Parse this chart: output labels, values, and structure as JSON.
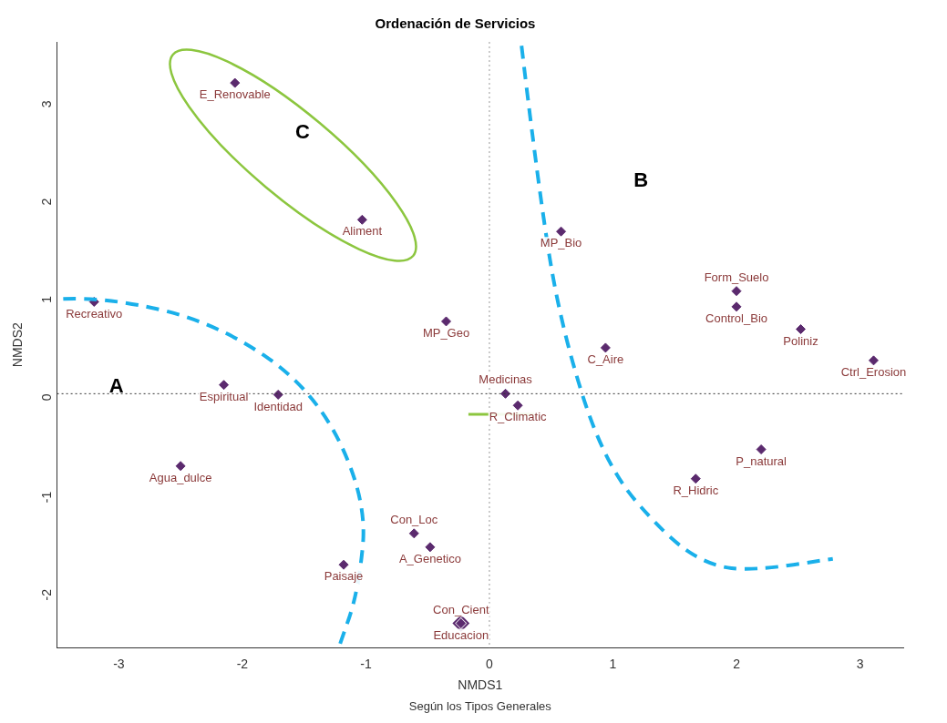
{
  "chart_data": {
    "type": "scatter",
    "title": "Ordenación de Servicios",
    "xlabel": "NMDS1",
    "ylabel": "NMDS2",
    "xlim": [
      -3.5,
      3.35
    ],
    "xticks": [
      -3,
      -2,
      -1,
      0,
      1,
      2,
      3
    ],
    "ylim": [
      -2.6,
      3.6
    ],
    "yticks": [
      -2,
      -1,
      0,
      1,
      2,
      3
    ],
    "grid": false,
    "legend": false,
    "marker": "diamond",
    "ref_lines": [
      {
        "axis": "x",
        "value": 0,
        "color": "#999999",
        "line_style": "dotted"
      },
      {
        "axis": "y",
        "value": 0,
        "color": "#333333",
        "line_style": "dotted"
      }
    ],
    "annotations": [
      "Según los Tipos Generales",
      "A",
      "B",
      "C"
    ],
    "series": [
      {
        "name": "E_Renovable",
        "color": "#5b2a6e",
        "x": [
          -2.06
        ],
        "values": [
          3.18
        ]
      },
      {
        "name": "Aliment",
        "color": "#5b2a6e",
        "x": [
          -1.03
        ],
        "values": [
          1.78
        ]
      },
      {
        "name": "Recreativo",
        "color": "#5b2a6e",
        "x": [
          -3.2
        ],
        "values": [
          0.94
        ]
      },
      {
        "name": "MP_Geo",
        "color": "#5b2a6e",
        "x": [
          -0.35
        ],
        "values": [
          0.74
        ]
      },
      {
        "name": "Espiritual",
        "color": "#5b2a6e",
        "x": [
          -2.15
        ],
        "values": [
          0.09
        ]
      },
      {
        "name": "Identidad",
        "color": "#5b2a6e",
        "x": [
          -1.71
        ],
        "values": [
          -0.01
        ]
      },
      {
        "name": "Agua_dulce",
        "color": "#5b2a6e",
        "x": [
          -2.5
        ],
        "values": [
          -0.74
        ]
      },
      {
        "name": "Con_Loc",
        "color": "#5b2a6e",
        "x": [
          -0.61
        ],
        "values": [
          -1.43
        ]
      },
      {
        "name": "A_Genetico",
        "color": "#5b2a6e",
        "x": [
          -0.48
        ],
        "values": [
          -1.57
        ]
      },
      {
        "name": "Paisaje",
        "color": "#5b2a6e",
        "x": [
          -1.18
        ],
        "values": [
          -1.75
        ]
      },
      {
        "name": "Educacion",
        "color": "#5b2a6e",
        "x": [
          -0.23
        ],
        "values": [
          -2.35
        ]
      },
      {
        "name": "Con_Cient",
        "color": "#5b2a6e",
        "x": [
          -0.23
        ],
        "values": [
          -2.35
        ]
      },
      {
        "name": "Medicinas",
        "color": "#5b2a6e",
        "x": [
          0.13
        ],
        "values": [
          0.0
        ]
      },
      {
        "name": "R_Climatic",
        "color": "#5b2a6e",
        "x": [
          0.23
        ],
        "values": [
          -0.12
        ]
      },
      {
        "name": "MP_Bio",
        "color": "#5b2a6e",
        "x": [
          0.58
        ],
        "values": [
          1.66
        ]
      },
      {
        "name": "C_Aire",
        "color": "#5b2a6e",
        "x": [
          0.94
        ],
        "values": [
          0.47
        ]
      },
      {
        "name": "Form_Suelo",
        "color": "#5b2a6e",
        "x": [
          2.0
        ],
        "values": [
          1.05
        ]
      },
      {
        "name": "Control_Bio",
        "color": "#5b2a6e",
        "x": [
          2.0
        ],
        "values": [
          0.89
        ]
      },
      {
        "name": "Poliniz",
        "color": "#5b2a6e",
        "x": [
          2.52
        ],
        "values": [
          0.66
        ]
      },
      {
        "name": "Ctrl_Erosion",
        "color": "#5b2a6e",
        "x": [
          3.11
        ],
        "values": [
          0.34
        ]
      },
      {
        "name": "P_natural",
        "color": "#5b2a6e",
        "x": [
          2.2
        ],
        "values": [
          -0.57
        ]
      },
      {
        "name": "R_Hidric",
        "color": "#5b2a6e",
        "x": [
          1.67
        ],
        "values": [
          -0.87
        ]
      }
    ]
  }
}
